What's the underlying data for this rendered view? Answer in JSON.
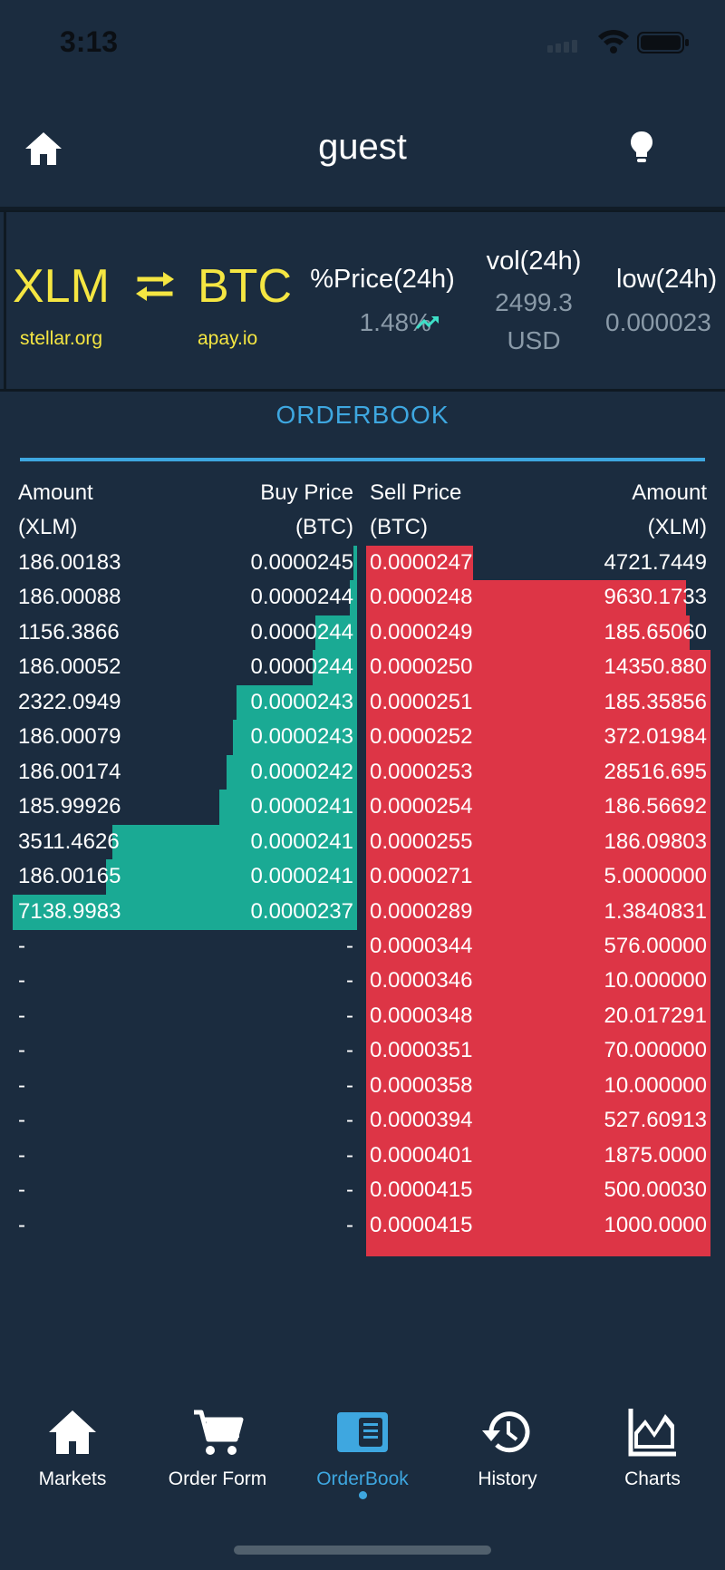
{
  "status_bar": {
    "time": "3:13"
  },
  "header": {
    "title": "guest"
  },
  "pair": {
    "base": {
      "code": "XLM",
      "domain": "stellar.org"
    },
    "counter": {
      "code": "BTC",
      "domain": "apay.io"
    }
  },
  "stats": [
    {
      "label": "%Price(24h)",
      "value": "1.48%",
      "trend": "up"
    },
    {
      "label": "vol(24h)",
      "value": "2499.3",
      "unit": "USD"
    },
    {
      "label": "low(24h)",
      "value": "0.000023"
    }
  ],
  "orderbook": {
    "title": "ORDERBOOK",
    "headers": {
      "bid_amount": [
        "Amount",
        "(XLM)"
      ],
      "bid_price": [
        "Buy Price",
        "(BTC)"
      ],
      "ask_price": [
        "Sell Price",
        "(BTC)"
      ],
      "ask_amount": [
        "Amount",
        "(XLM)"
      ]
    },
    "bids": [
      {
        "amount": "186.00183",
        "price": "0.0000245",
        "depth": 0.01
      },
      {
        "amount": "186.00088",
        "price": "0.0000244",
        "depth": 0.02
      },
      {
        "amount": "1156.3866",
        "price": "0.0000244",
        "depth": 0.12
      },
      {
        "amount": "186.00052",
        "price": "0.0000244",
        "depth": 0.13
      },
      {
        "amount": "2322.0949",
        "price": "0.0000243",
        "depth": 0.35
      },
      {
        "amount": "186.00079",
        "price": "0.0000243",
        "depth": 0.36
      },
      {
        "amount": "186.00174",
        "price": "0.0000242",
        "depth": 0.38
      },
      {
        "amount": "185.99926",
        "price": "0.0000241",
        "depth": 0.4
      },
      {
        "amount": "3511.4626",
        "price": "0.0000241",
        "depth": 0.71
      },
      {
        "amount": "186.00165",
        "price": "0.0000241",
        "depth": 0.73
      },
      {
        "amount": "7138.9983",
        "price": "0.0000237",
        "depth": 1.0
      },
      {
        "amount": "-",
        "price": "-",
        "depth": 0
      },
      {
        "amount": "-",
        "price": "-",
        "depth": 0
      },
      {
        "amount": "-",
        "price": "-",
        "depth": 0
      },
      {
        "amount": "-",
        "price": "-",
        "depth": 0
      },
      {
        "amount": "-",
        "price": "-",
        "depth": 0
      },
      {
        "amount": "-",
        "price": "-",
        "depth": 0
      },
      {
        "amount": "-",
        "price": "-",
        "depth": 0
      },
      {
        "amount": "-",
        "price": "-",
        "depth": 0
      },
      {
        "amount": "-",
        "price": "-",
        "depth": 0
      }
    ],
    "asks": [
      {
        "price": "0.0000247",
        "amount": "4721.7449",
        "depth": 0.31
      },
      {
        "price": "0.0000248",
        "amount": "9630.1733",
        "depth": 0.93
      },
      {
        "price": "0.0000249",
        "amount": "185.65060",
        "depth": 0.94
      },
      {
        "price": "0.0000250",
        "amount": "14350.880",
        "depth": 1.0
      },
      {
        "price": "0.0000251",
        "amount": "185.35856",
        "depth": 1.0
      },
      {
        "price": "0.0000252",
        "amount": "372.01984",
        "depth": 1.0
      },
      {
        "price": "0.0000253",
        "amount": "28516.695",
        "depth": 1.0
      },
      {
        "price": "0.0000254",
        "amount": "186.56692",
        "depth": 1.0
      },
      {
        "price": "0.0000255",
        "amount": "186.09803",
        "depth": 1.0
      },
      {
        "price": "0.0000271",
        "amount": "5.0000000",
        "depth": 1.0
      },
      {
        "price": "0.0000289",
        "amount": "1.3840831",
        "depth": 1.0
      },
      {
        "price": "0.0000344",
        "amount": "576.00000",
        "depth": 1.0
      },
      {
        "price": "0.0000346",
        "amount": "10.000000",
        "depth": 1.0
      },
      {
        "price": "0.0000348",
        "amount": "20.017291",
        "depth": 1.0
      },
      {
        "price": "0.0000351",
        "amount": "70.000000",
        "depth": 1.0
      },
      {
        "price": "0.0000358",
        "amount": "10.000000",
        "depth": 1.0
      },
      {
        "price": "0.0000394",
        "amount": "527.60913",
        "depth": 1.0
      },
      {
        "price": "0.0000401",
        "amount": "1875.0000",
        "depth": 1.0
      },
      {
        "price": "0.0000415",
        "amount": "500.00030",
        "depth": 1.0
      },
      {
        "price": "0.0000415",
        "amount": "1000.0000",
        "depth": 1.0
      }
    ]
  },
  "nav": [
    {
      "label": "Markets",
      "icon": "home-icon"
    },
    {
      "label": "Order Form",
      "icon": "cart-icon"
    },
    {
      "label": "OrderBook",
      "icon": "orderbook-icon",
      "active": true
    },
    {
      "label": "History",
      "icon": "history-icon"
    },
    {
      "label": "Charts",
      "icon": "chart-icon"
    }
  ],
  "colors": {
    "background": "#1b2c3f",
    "accent": "#3ea7e0",
    "pair_yellow": "#f5e642",
    "bid": "#1aaa94",
    "ask": "#dd3546"
  }
}
